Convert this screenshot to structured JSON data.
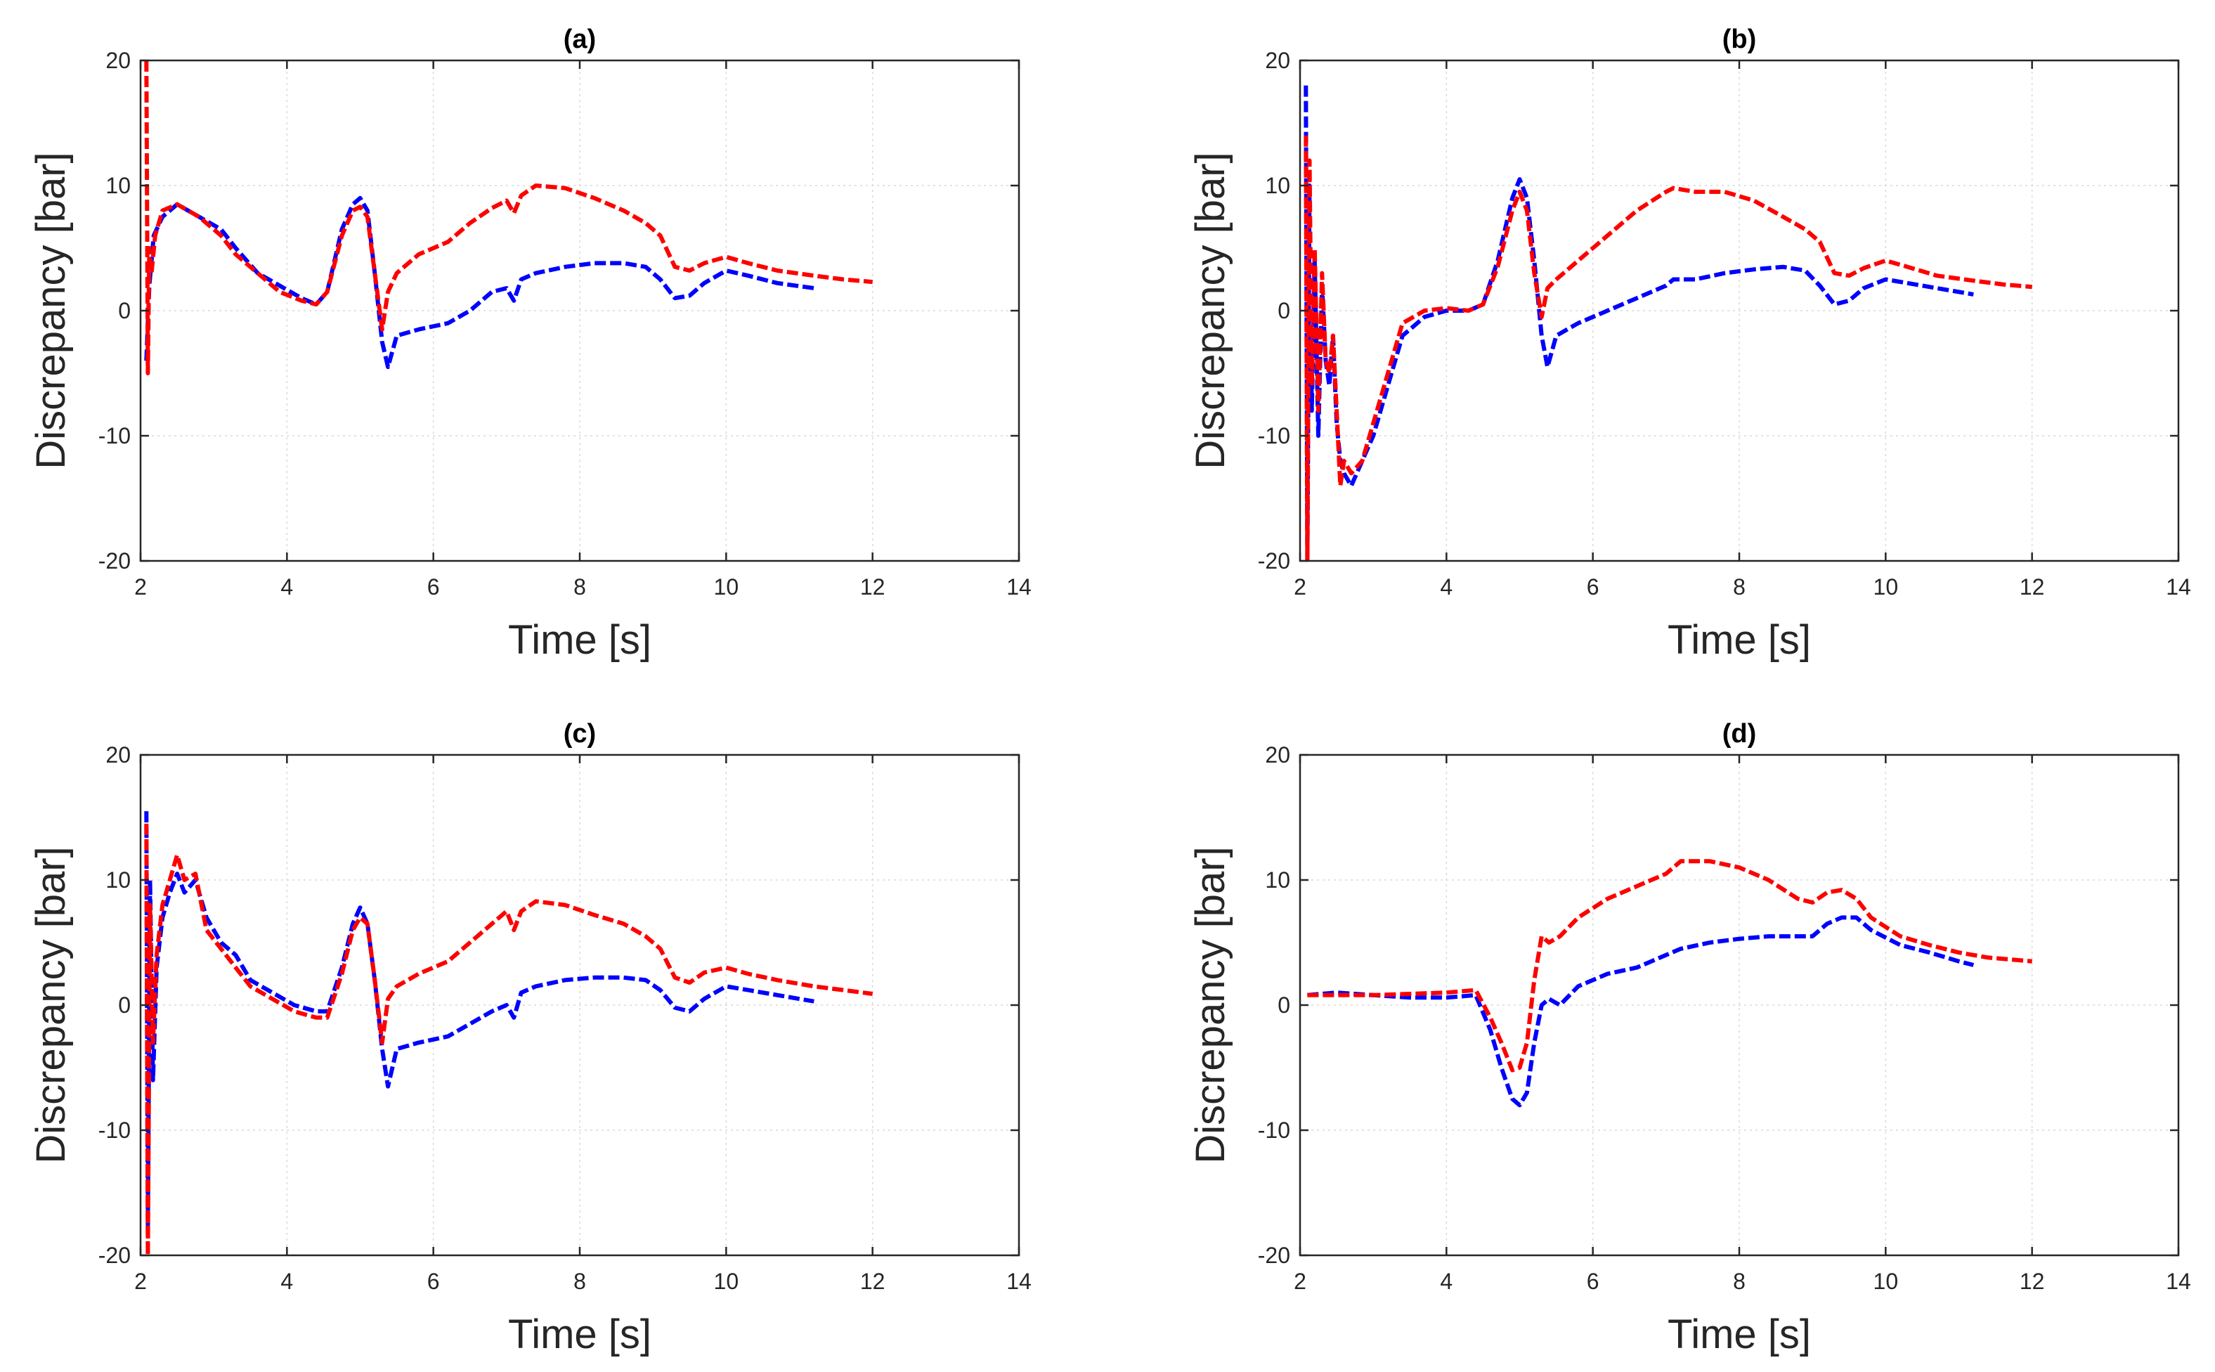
{
  "chart_data": [
    {
      "type": "line",
      "title": "(a)",
      "xlabel": "Time [s]",
      "ylabel": "Discrepancy [bar]",
      "xlim": [
        2,
        14
      ],
      "ylim": [
        -20,
        20
      ],
      "xticks": [
        "2",
        "4",
        "6",
        "8",
        "10",
        "12",
        "14"
      ],
      "yticks": [
        "-20",
        "-10",
        "0",
        "10",
        "20"
      ],
      "grid": true,
      "series": [
        {
          "color": "#0000ff",
          "line_style": "dashed",
          "x": [
            2.08,
            2.12,
            2.18,
            2.3,
            2.5,
            2.8,
            3.1,
            3.3,
            3.6,
            3.9,
            4.2,
            4.4,
            4.55,
            4.75,
            4.9,
            5.0,
            5.1,
            5.2,
            5.3,
            5.38,
            5.5,
            5.8,
            6.2,
            6.5,
            6.8,
            7.0,
            7.1,
            7.2,
            7.4,
            7.8,
            8.2,
            8.6,
            8.9,
            9.1,
            9.3,
            9.5,
            9.7,
            10.0,
            10.3,
            10.7,
            11.2
          ],
          "y": [
            -4,
            2,
            6,
            7.5,
            8.5,
            7.5,
            6.5,
            5,
            3,
            2,
            1,
            0.5,
            1.5,
            6.5,
            8.5,
            9,
            8,
            3,
            -2.5,
            -4.5,
            -2,
            -1.5,
            -1,
            0,
            1.5,
            1.8,
            0.8,
            2.5,
            3,
            3.5,
            3.8,
            3.8,
            3.5,
            2.5,
            1,
            1.2,
            2.2,
            3.2,
            2.8,
            2.2,
            1.8
          ]
        },
        {
          "color": "#ff0000",
          "line_style": "dashed",
          "x": [
            2.08,
            2.1,
            2.12,
            2.15,
            2.2,
            2.3,
            2.5,
            2.8,
            3.1,
            3.3,
            3.6,
            3.9,
            4.2,
            4.4,
            4.55,
            4.75,
            4.9,
            5.0,
            5.1,
            5.2,
            5.3,
            5.38,
            5.5,
            5.8,
            6.2,
            6.5,
            6.8,
            7.0,
            7.1,
            7.2,
            7.4,
            7.8,
            8.2,
            8.6,
            8.9,
            9.1,
            9.3,
            9.5,
            9.7,
            10.0,
            10.3,
            10.7,
            11.2,
            11.6,
            12.0
          ],
          "y": [
            20,
            -5,
            5,
            3,
            6,
            8,
            8.5,
            7.5,
            6,
            4.5,
            3,
            1.5,
            0.8,
            0.5,
            1.5,
            6,
            8,
            8.3,
            7.5,
            3,
            -1.5,
            1.5,
            3,
            4.5,
            5.5,
            7,
            8.2,
            8.8,
            7.8,
            9.2,
            10,
            9.8,
            9,
            8,
            7,
            6,
            3.5,
            3.2,
            3.8,
            4.3,
            3.8,
            3.2,
            2.8,
            2.5,
            2.3
          ]
        }
      ]
    },
    {
      "type": "line",
      "title": "(b)",
      "xlabel": "Time [s]",
      "ylabel": "Discrepancy [bar]",
      "xlim": [
        2,
        14
      ],
      "ylim": [
        -20,
        20
      ],
      "xticks": [
        "2",
        "4",
        "6",
        "8",
        "10",
        "12",
        "14"
      ],
      "yticks": [
        "-20",
        "-10",
        "0",
        "10",
        "20"
      ],
      "grid": true,
      "series": [
        {
          "color": "#0000ff",
          "line_style": "dashed",
          "x": [
            2.08,
            2.1,
            2.13,
            2.16,
            2.2,
            2.25,
            2.3,
            2.35,
            2.4,
            2.45,
            2.5,
            2.55,
            2.6,
            2.7,
            2.85,
            3.0,
            3.2,
            3.4,
            3.7,
            4.0,
            4.3,
            4.5,
            4.7,
            4.9,
            5.0,
            5.1,
            5.2,
            5.3,
            5.38,
            5.5,
            5.8,
            6.2,
            6.6,
            7.0,
            7.1,
            7.4,
            7.8,
            8.2,
            8.6,
            8.9,
            9.1,
            9.3,
            9.5,
            9.7,
            10.0,
            10.3,
            10.7,
            11.2
          ],
          "y": [
            18,
            -20,
            10,
            -8,
            4,
            -10,
            2,
            -4,
            -6,
            -2,
            -9,
            -12,
            -13,
            -14,
            -12,
            -10,
            -6,
            -2,
            -0.5,
            0,
            0,
            0.5,
            4,
            9,
            10.5,
            9,
            4,
            -2,
            -4.5,
            -2,
            -1,
            0,
            1,
            2,
            2.5,
            2.5,
            3,
            3.3,
            3.5,
            3.2,
            2,
            0.5,
            0.8,
            1.8,
            2.5,
            2.2,
            1.8,
            1.3
          ]
        },
        {
          "color": "#ff0000",
          "line_style": "dashed",
          "x": [
            2.08,
            2.1,
            2.13,
            2.16,
            2.2,
            2.25,
            2.3,
            2.35,
            2.4,
            2.45,
            2.5,
            2.55,
            2.6,
            2.7,
            2.85,
            3.0,
            3.2,
            3.4,
            3.7,
            4.0,
            4.3,
            4.5,
            4.7,
            4.9,
            5.0,
            5.1,
            5.2,
            5.3,
            5.38,
            5.5,
            5.8,
            6.2,
            6.6,
            7.0,
            7.1,
            7.4,
            7.8,
            8.2,
            8.6,
            8.9,
            9.1,
            9.3,
            9.5,
            9.7,
            10.0,
            10.3,
            10.7,
            11.2,
            11.6,
            12.0
          ],
          "y": [
            14,
            -20,
            12,
            -6,
            5,
            -8,
            3,
            -4,
            -5,
            -2,
            -8,
            -14,
            -12,
            -13,
            -12,
            -9,
            -5,
            -1,
            0,
            0.2,
            0,
            0.5,
            3.5,
            8,
            9.5,
            8,
            3,
            -0.5,
            1.8,
            2.5,
            4,
            6,
            8,
            9.5,
            9.8,
            9.5,
            9.5,
            8.8,
            7.5,
            6.5,
            5.5,
            3,
            2.8,
            3.4,
            4,
            3.5,
            2.8,
            2.4,
            2.1,
            1.9
          ]
        }
      ]
    },
    {
      "type": "line",
      "title": "(c)",
      "xlabel": "Time [s]",
      "ylabel": "Discrepancy [bar]",
      "xlim": [
        2,
        14
      ],
      "ylim": [
        -20,
        20
      ],
      "xticks": [
        "2",
        "4",
        "6",
        "8",
        "10",
        "12",
        "14"
      ],
      "yticks": [
        "-20",
        "-10",
        "0",
        "10",
        "20"
      ],
      "grid": true,
      "series": [
        {
          "color": "#0000ff",
          "line_style": "dashed",
          "x": [
            2.08,
            2.1,
            2.13,
            2.17,
            2.22,
            2.3,
            2.4,
            2.5,
            2.6,
            2.75,
            2.9,
            3.1,
            3.3,
            3.5,
            3.8,
            4.1,
            4.4,
            4.55,
            4.75,
            4.9,
            5.0,
            5.1,
            5.2,
            5.3,
            5.38,
            5.5,
            5.8,
            6.2,
            6.5,
            6.8,
            7.0,
            7.1,
            7.2,
            7.4,
            7.8,
            8.2,
            8.6,
            8.9,
            9.1,
            9.3,
            9.5,
            9.7,
            10.0,
            10.3,
            10.7,
            11.2
          ],
          "y": [
            15.5,
            -18,
            10,
            -6,
            3,
            7,
            9,
            10.5,
            9,
            10,
            7,
            5,
            4,
            2,
            1,
            0,
            -0.5,
            -0.5,
            3,
            6.5,
            7.8,
            6.5,
            2,
            -3.5,
            -6.5,
            -3.5,
            -3,
            -2.5,
            -1.5,
            -0.5,
            0,
            -1,
            1,
            1.5,
            2,
            2.2,
            2.2,
            2,
            1.2,
            -0.2,
            -0.5,
            0.5,
            1.5,
            1.2,
            0.8,
            0.3
          ]
        },
        {
          "color": "#ff0000",
          "line_style": "dashed",
          "x": [
            2.08,
            2.1,
            2.13,
            2.17,
            2.22,
            2.3,
            2.4,
            2.5,
            2.6,
            2.75,
            2.9,
            3.1,
            3.3,
            3.5,
            3.8,
            4.1,
            4.4,
            4.55,
            4.75,
            4.9,
            5.0,
            5.1,
            5.2,
            5.3,
            5.38,
            5.5,
            5.8,
            6.2,
            6.5,
            6.8,
            7.0,
            7.1,
            7.2,
            7.4,
            7.8,
            8.2,
            8.6,
            8.9,
            9.1,
            9.3,
            9.5,
            9.7,
            10.0,
            10.3,
            10.7,
            11.2,
            11.6,
            12.0
          ],
          "y": [
            14.5,
            -20,
            8,
            -3,
            4,
            8,
            10,
            12,
            10,
            10.5,
            6,
            4.5,
            3,
            1.5,
            0.5,
            -0.5,
            -1,
            -1,
            2.5,
            6,
            7,
            6.5,
            2,
            -3,
            0.5,
            1.5,
            2.5,
            3.5,
            5,
            6.5,
            7.5,
            6,
            7.5,
            8.3,
            8,
            7.2,
            6.5,
            5.5,
            4.5,
            2.2,
            1.8,
            2.6,
            3,
            2.5,
            2,
            1.5,
            1.2,
            0.9
          ]
        }
      ]
    },
    {
      "type": "line",
      "title": "(d)",
      "xlabel": "Time [s]",
      "ylabel": "Discrepancy [bar]",
      "xlim": [
        2,
        14
      ],
      "ylim": [
        -20,
        20
      ],
      "xticks": [
        "2",
        "4",
        "6",
        "8",
        "10",
        "12",
        "14"
      ],
      "yticks": [
        "-20",
        "-10",
        "0",
        "10",
        "20"
      ],
      "grid": true,
      "series": [
        {
          "color": "#0000ff",
          "line_style": "dashed",
          "x": [
            2.1,
            2.5,
            3.0,
            3.5,
            4.0,
            4.4,
            4.6,
            4.75,
            4.9,
            5.0,
            5.1,
            5.2,
            5.3,
            5.4,
            5.55,
            5.8,
            6.2,
            6.6,
            7.0,
            7.2,
            7.6,
            8.0,
            8.4,
            8.8,
            9.0,
            9.2,
            9.4,
            9.6,
            9.8,
            10.2,
            10.6,
            11.0,
            11.2
          ],
          "y": [
            0.8,
            1,
            0.8,
            0.6,
            0.6,
            0.8,
            -2,
            -5,
            -7.5,
            -8,
            -7,
            -3,
            0,
            0.5,
            0,
            1.5,
            2.5,
            3,
            4,
            4.5,
            5,
            5.3,
            5.5,
            5.5,
            5.5,
            6.5,
            7,
            7,
            6,
            4.8,
            4.2,
            3.5,
            3.2
          ]
        },
        {
          "color": "#ff0000",
          "line_style": "dashed",
          "x": [
            2.1,
            2.5,
            3.0,
            3.5,
            4.0,
            4.4,
            4.6,
            4.75,
            4.9,
            5.0,
            5.1,
            5.2,
            5.3,
            5.4,
            5.55,
            5.8,
            6.2,
            6.6,
            7.0,
            7.2,
            7.6,
            8.0,
            8.4,
            8.8,
            9.0,
            9.2,
            9.4,
            9.6,
            9.8,
            10.2,
            10.6,
            11.0,
            11.4,
            12.0
          ],
          "y": [
            0.8,
            0.8,
            0.8,
            0.9,
            1,
            1.2,
            -1,
            -3,
            -5.2,
            -5,
            -3,
            2,
            5.5,
            5,
            5.5,
            7,
            8.5,
            9.5,
            10.5,
            11.5,
            11.5,
            11,
            10,
            8.5,
            8.2,
            9,
            9.2,
            8.5,
            7,
            5.5,
            4.8,
            4.2,
            3.8,
            3.5
          ]
        }
      ]
    }
  ]
}
